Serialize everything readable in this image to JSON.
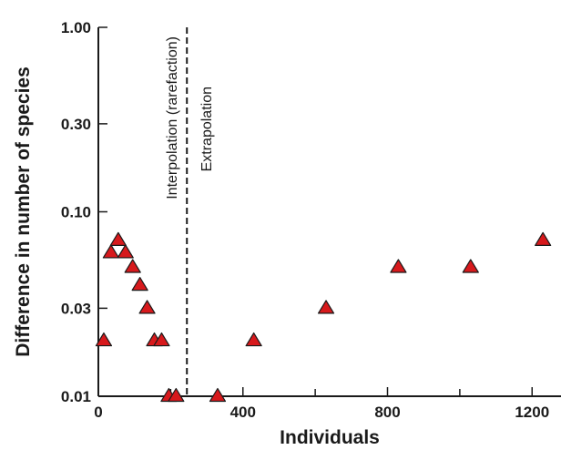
{
  "chart_data": {
    "type": "scatter",
    "title": "",
    "xlabel": "Individuals",
    "ylabel": "Difference in number of species",
    "xlim": [
      0,
      1280
    ],
    "ylim": [
      0.01,
      1.0
    ],
    "y_scale": "log",
    "x_ticks": [
      0,
      400,
      800,
      1200
    ],
    "x_tick_labels": [
      "0",
      "400",
      "800",
      "1200"
    ],
    "y_ticks": [
      0.01,
      0.03,
      0.1,
      0.3,
      1.0
    ],
    "y_tick_labels": [
      "0.01",
      "0.03",
      "0.10",
      "0.30",
      "1.00"
    ],
    "marker": "triangle",
    "marker_color": "#d7191c",
    "grid": false,
    "legend": "none",
    "divider": {
      "x": 245,
      "left_label": "Interpolation (rarefaction)",
      "right_label": "Extrapolation"
    },
    "points": [
      {
        "x": 15,
        "y": 0.02
      },
      {
        "x": 35,
        "y": 0.06
      },
      {
        "x": 55,
        "y": 0.07
      },
      {
        "x": 75,
        "y": 0.06
      },
      {
        "x": 95,
        "y": 0.05
      },
      {
        "x": 115,
        "y": 0.04
      },
      {
        "x": 135,
        "y": 0.03
      },
      {
        "x": 155,
        "y": 0.02
      },
      {
        "x": 175,
        "y": 0.02
      },
      {
        "x": 195,
        "y": 0.01
      },
      {
        "x": 215,
        "y": 0.01
      },
      {
        "x": 330,
        "y": 0.01
      },
      {
        "x": 430,
        "y": 0.02
      },
      {
        "x": 630,
        "y": 0.03
      },
      {
        "x": 830,
        "y": 0.05
      },
      {
        "x": 1030,
        "y": 0.05
      },
      {
        "x": 1230,
        "y": 0.07
      }
    ]
  }
}
